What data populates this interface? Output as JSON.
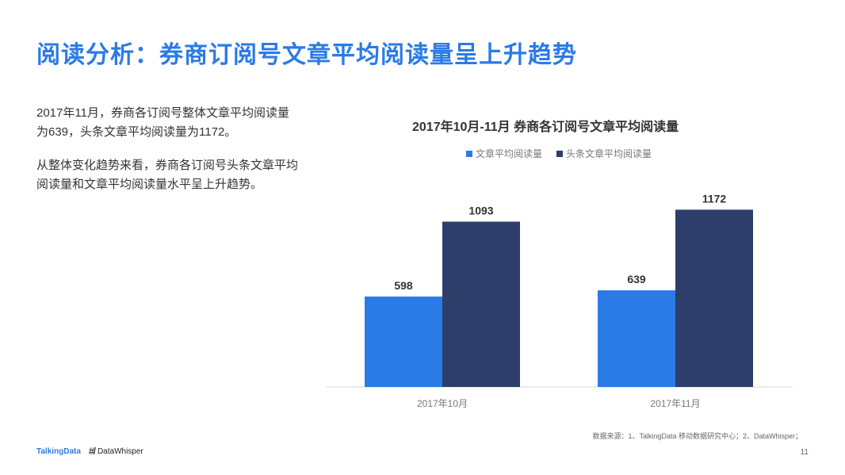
{
  "page": {
    "title": "阅读分析：券商订阅号文章平均阅读量呈上升趋势",
    "paragraphs": [
      "2017年11月，券商各订阅号整体文章平均阅读量为639，头条文章平均阅读量为1172。",
      "从整体变化趋势来看，券商各订阅号头条文章平均阅读量和文章平均阅读量水平呈上升趋势。"
    ],
    "source": "数据来源：1、TalkingData 移动数据研究中心；2、DataWhisper；",
    "page_number": "11",
    "logos": {
      "talkingdata": "TalkingData",
      "datawhisper": "DataWhisper"
    }
  },
  "chart_data": {
    "type": "bar",
    "title": "2017年10月-11月 券商各订阅号文章平均阅读量",
    "categories": [
      "2017年10月",
      "2017年11月"
    ],
    "series": [
      {
        "name": "文章平均阅读量",
        "color": "#2b7be6",
        "values": [
          598,
          639
        ]
      },
      {
        "name": "头条文章平均阅读量",
        "color": "#2e3e6b",
        "values": [
          1093,
          1172
        ]
      }
    ],
    "ylim": [
      0,
      1300
    ],
    "grid": false,
    "legend": "top"
  }
}
